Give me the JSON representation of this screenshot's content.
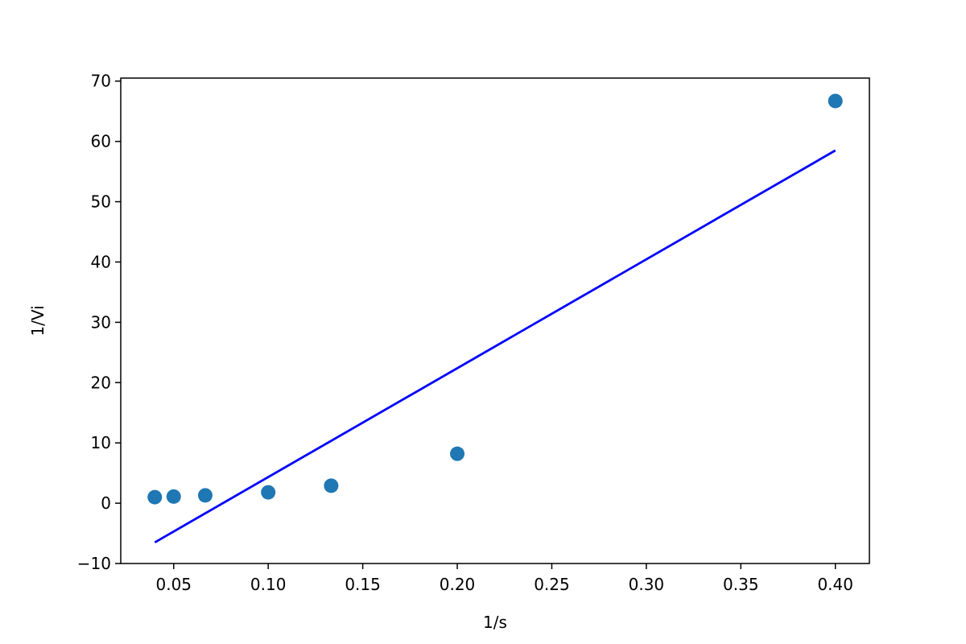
{
  "chart_data": {
    "type": "scatter",
    "title": "",
    "xlabel": "1/s",
    "ylabel": "1/Vi",
    "xlim": [
      0.022,
      0.418
    ],
    "ylim": [
      -10,
      70.5
    ],
    "x_ticks": [
      {
        "value": 0.05,
        "label": "0.05"
      },
      {
        "value": 0.1,
        "label": "0.10"
      },
      {
        "value": 0.15,
        "label": "0.15"
      },
      {
        "value": 0.2,
        "label": "0.20"
      },
      {
        "value": 0.25,
        "label": "0.25"
      },
      {
        "value": 0.3,
        "label": "0.30"
      },
      {
        "value": 0.35,
        "label": "0.35"
      },
      {
        "value": 0.4,
        "label": "0.40"
      }
    ],
    "y_ticks": [
      {
        "value": -10,
        "label": "−10"
      },
      {
        "value": 0,
        "label": "0"
      },
      {
        "value": 10,
        "label": "10"
      },
      {
        "value": 20,
        "label": "20"
      },
      {
        "value": 30,
        "label": "30"
      },
      {
        "value": 40,
        "label": "40"
      },
      {
        "value": 50,
        "label": "50"
      },
      {
        "value": 60,
        "label": "60"
      },
      {
        "value": 70,
        "label": "70"
      }
    ],
    "grid": false,
    "series": [
      {
        "type": "scatter",
        "color": "#1f77b4",
        "x": [
          0.04,
          0.05,
          0.0667,
          0.1,
          0.1333,
          0.2,
          0.4
        ],
        "y": [
          1.0,
          1.1,
          1.3,
          1.8,
          2.9,
          8.2,
          66.7
        ]
      },
      {
        "type": "line",
        "color": "#0000ff",
        "x": [
          0.04,
          0.4
        ],
        "y": [
          -6.5,
          58.5
        ]
      }
    ]
  }
}
